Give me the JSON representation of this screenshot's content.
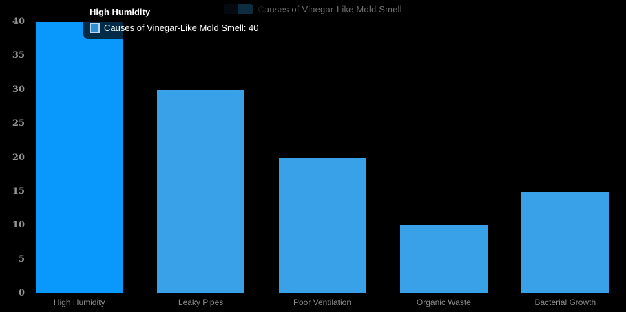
{
  "chart_data": {
    "type": "bar",
    "title": "",
    "categories": [
      "High Humidity",
      "Leaky Pipes",
      "Poor Ventilation",
      "Organic Waste",
      "Bacterial Growth"
    ],
    "values": [
      40,
      30,
      20,
      10,
      15
    ],
    "series_name": "Causes of Vinegar-Like Mold Smell",
    "xlabel": "",
    "ylabel": "",
    "ylim": [
      0,
      40
    ],
    "yticks": [
      0,
      5,
      10,
      15,
      20,
      25,
      30,
      35,
      40
    ],
    "grid": false,
    "legend_position": "top-center",
    "background_color": "#000000",
    "bar_color": "#38a1e8",
    "highlight_color": "#0999fd",
    "highlighted_index": 0,
    "y_label_color": "#949494",
    "x_label_color": "#8a8a8a"
  },
  "legend": {
    "label": "Causes of Vinegar-Like Mold Smell",
    "swatch_colors": [
      "#0f2737",
      "#38a1e8"
    ],
    "text_color": "#6e6e6e"
  },
  "tooltip": {
    "title": "High Humidity",
    "line": "Causes of Vinegar-Like Mold Smell: 40",
    "marker_fill": "#2f8ecf",
    "marker_border": "#b9d8ef"
  }
}
